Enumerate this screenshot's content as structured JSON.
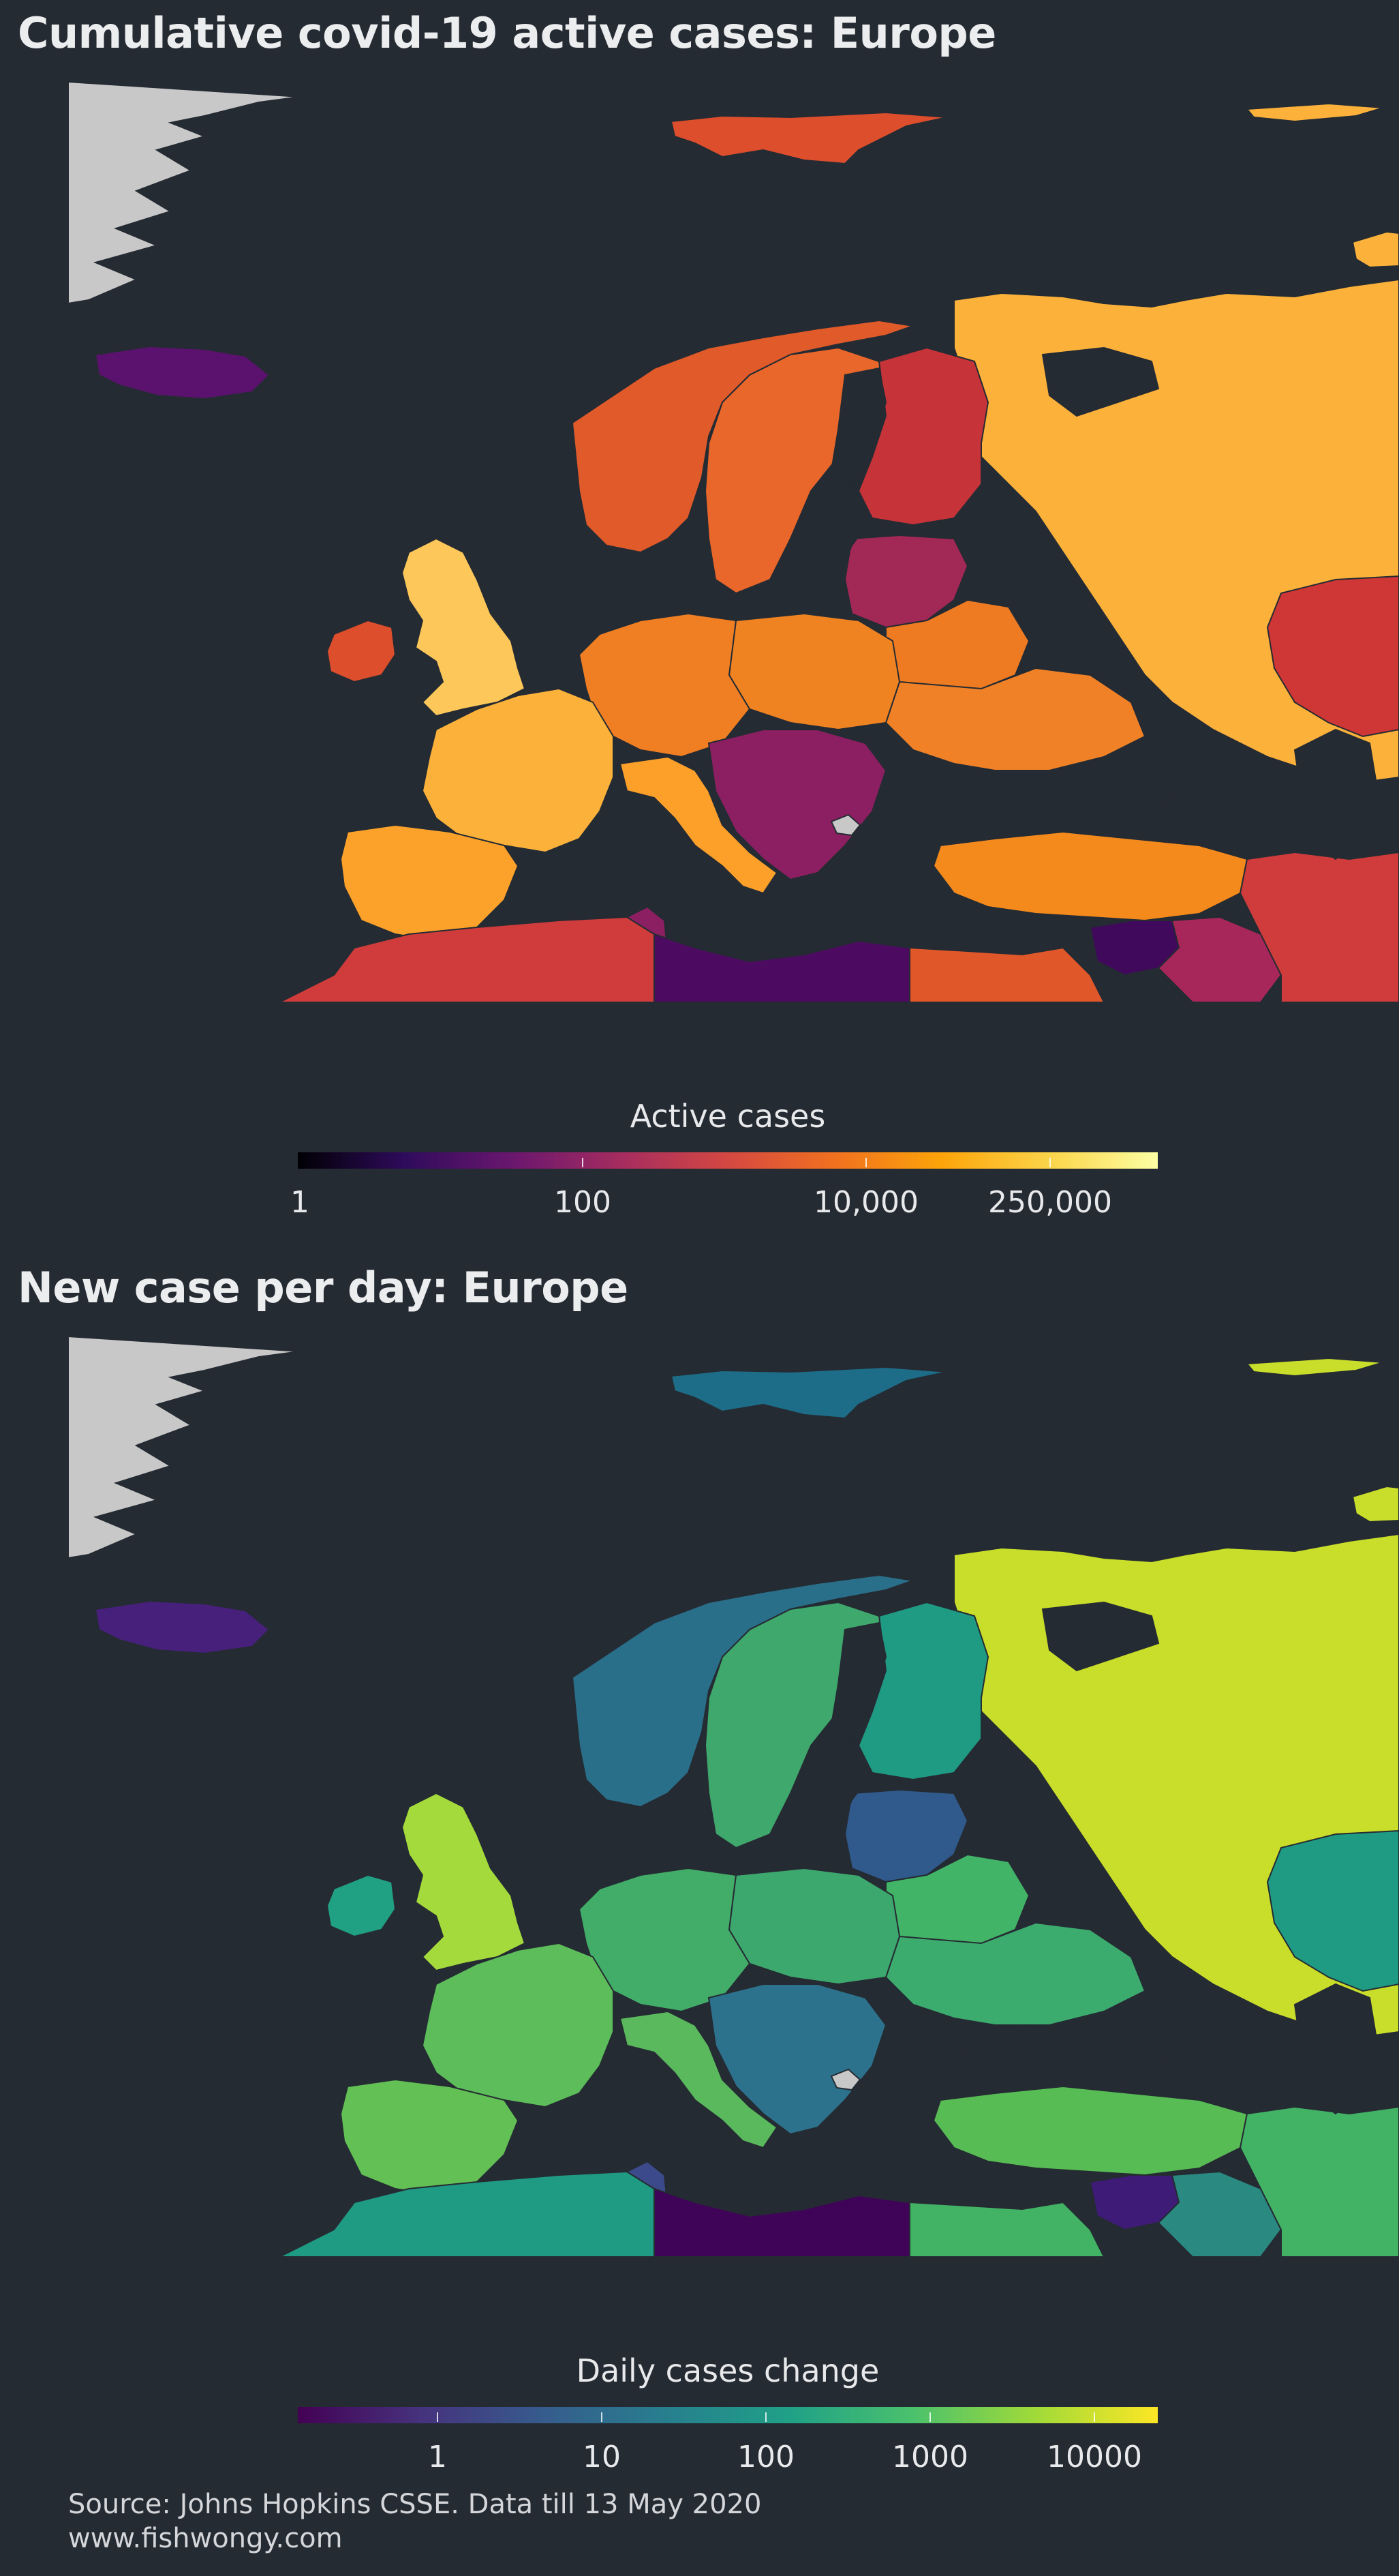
{
  "map1": {
    "title": "Cumulative covid-19 active cases: Europe",
    "legend_title": "Active cases",
    "legend_ticks": [
      "1",
      "100",
      "10,000",
      "250,000"
    ],
    "colorscale": [
      "#000004",
      "#2f0b5c",
      "#6a176e",
      "#a52c60",
      "#d44842",
      "#f1711f",
      "#fca50a",
      "#fbd54a",
      "#fcffa4"
    ],
    "colors": {
      "background": "#252b33",
      "ocean": "#252b33",
      "no_data": "#c8c8c8",
      "russia": "#fcb23a",
      "uk": "#fdc75a",
      "france": "#fcb23a",
      "spain": "#fca22a",
      "italy": "#fca02a",
      "germany": "#f07e23",
      "norway": "#e05a2a",
      "sweden": "#e9672a",
      "finland": "#c63338",
      "baltics": "#a22856",
      "belarus": "#ee7b21",
      "ukraine": "#f18127",
      "poland": "#f08321",
      "turkey": "#f58a1c",
      "iceland": "#5b126e",
      "libya": "#4c0b61",
      "syria": "#40095c",
      "algeria": "#cf3c3b",
      "egypt": "#e0572a",
      "iraq": "#a8275a",
      "kazakhstan": "#cf3636",
      "svalbard": "#dd4e2c",
      "balkans": "#8b1f62"
    }
  },
  "map2": {
    "title": "New case per day: Europe",
    "legend_title": "Daily cases change",
    "legend_ticks": [
      "1",
      "10",
      "100",
      "1000",
      "10000"
    ],
    "colorscale": [
      "#440154",
      "#46327e",
      "#365c8d",
      "#277f8e",
      "#1fa187",
      "#4ac16d",
      "#a0da39",
      "#fde725"
    ],
    "colors": {
      "background": "#252b33",
      "ocean": "#252b33",
      "no_data": "#c8c8c8",
      "russia": "#c9de2a",
      "uk": "#a4da3c",
      "france": "#5cbd5a",
      "spain": "#62c055",
      "italy": "#5ab95c",
      "germany": "#42ad68",
      "norway": "#2a6f8a",
      "sweden": "#3fa86c",
      "finland": "#1f9a83",
      "baltics": "#2f5a8b",
      "belarus": "#41b467",
      "ukraine": "#3cab6e",
      "poland": "#3da86e",
      "turkey": "#58bc55",
      "iceland": "#46207a",
      "libya": "#3f0457",
      "syria": "#3e1b76",
      "algeria": "#1f9a83",
      "egypt": "#42b364",
      "iraq": "#2a8980",
      "kazakhstan": "#1f9a83",
      "svalbard": "#1d6c88",
      "balkans": "#2d728d",
      "ireland": "#20a183",
      "tunisia": "#3c4a8c"
    }
  },
  "source": "Source: Johns Hopkins CSSE. Data till 13 May 2020",
  "website": "www.fishwongy.com"
}
